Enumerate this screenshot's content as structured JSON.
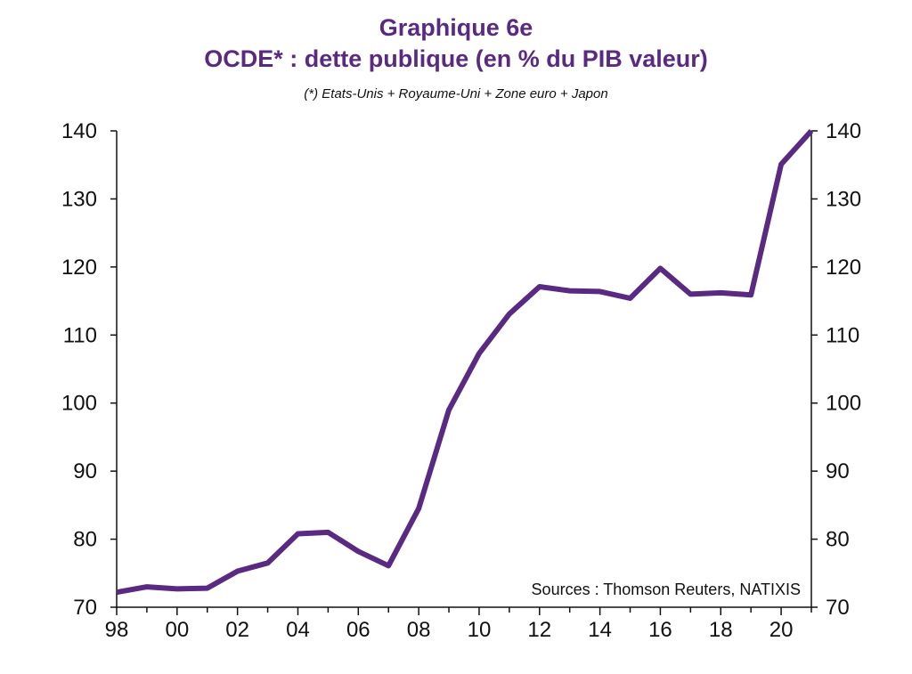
{
  "header": {
    "title": "Graphique 6e",
    "subtitle": "OCDE* : dette publique (en % du PIB valeur)",
    "note": "(*) Etats-Unis + Royaume-Uni + Zone euro + Japon"
  },
  "source": "Sources :  Thomson Reuters, NATIXIS",
  "colors": {
    "line": "#5a2a82",
    "title": "#5a2a82",
    "axis": "#111111"
  },
  "chart_data": {
    "type": "line",
    "title": "OCDE* : dette publique (en % du PIB valeur)",
    "xlabel": "",
    "ylabel": "",
    "x": [
      1998,
      1999,
      2000,
      2001,
      2002,
      2003,
      2004,
      2005,
      2006,
      2007,
      2008,
      2009,
      2010,
      2011,
      2012,
      2013,
      2014,
      2015,
      2016,
      2017,
      2018,
      2019,
      2020,
      2021
    ],
    "series": [
      {
        "values": [
          72.2,
          73.0,
          72.7,
          72.8,
          75.3,
          76.5,
          80.8,
          81.0,
          78.2,
          76.1,
          84.5,
          99.0,
          107.3,
          113.1,
          117.1,
          116.5,
          116.4,
          115.4,
          119.8,
          116.0,
          116.2,
          115.9,
          135.1,
          140.0
        ]
      }
    ],
    "xlim": [
      1998,
      2021
    ],
    "ylim": [
      70,
      140
    ],
    "x_tick_values": [
      1998,
      2000,
      2002,
      2004,
      2006,
      2008,
      2010,
      2012,
      2014,
      2016,
      2018,
      2020
    ],
    "x_tick_labels": [
      "98",
      "00",
      "02",
      "04",
      "06",
      "08",
      "10",
      "12",
      "14",
      "16",
      "18",
      "20"
    ],
    "y_ticks": [
      70,
      80,
      90,
      100,
      110,
      120,
      130,
      140
    ],
    "y_tick_labels": [
      "70",
      "80",
      "90",
      "100",
      "110",
      "120",
      "130",
      "140"
    ],
    "y_axis_right": true,
    "grid": false,
    "legend": "none"
  }
}
